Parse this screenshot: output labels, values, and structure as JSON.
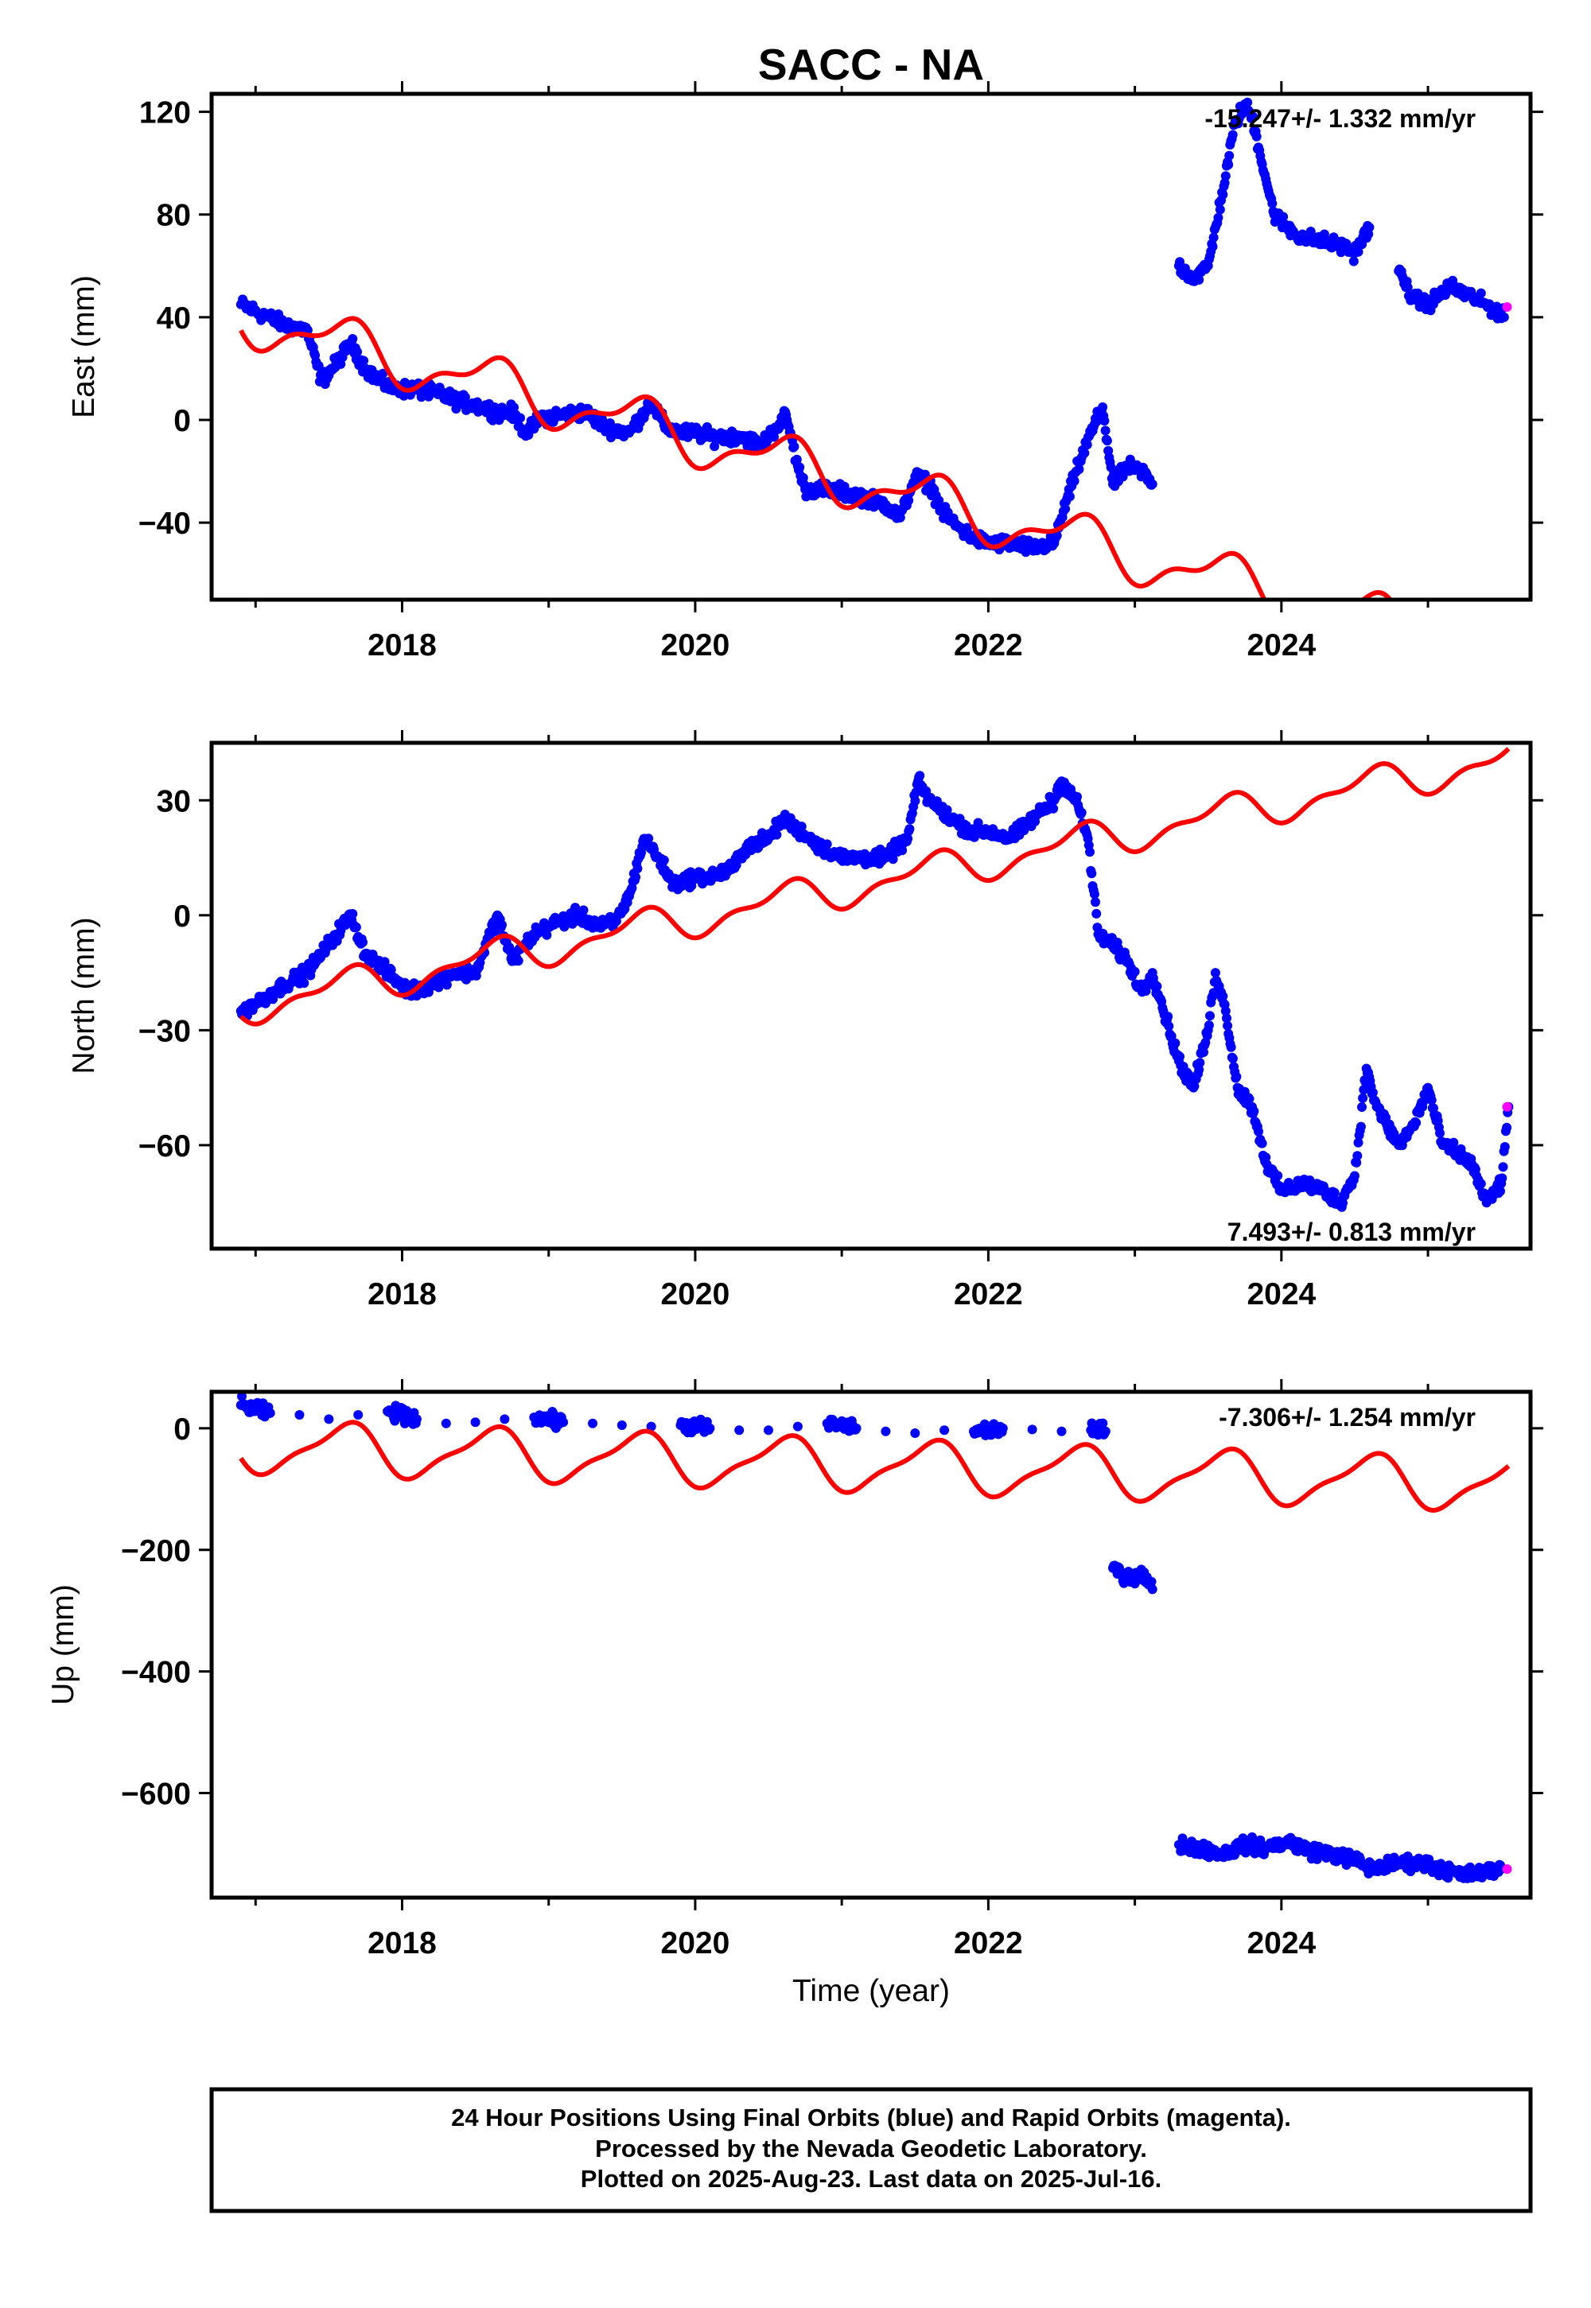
{
  "title": "SACC - NA",
  "footer": {
    "lines": [
      "24 Hour Positions Using Final Orbits (blue) and Rapid Orbits (magenta).",
      "Processed by the Nevada Geodetic Laboratory.",
      "Plotted on 2025-Aug-23. Last data on 2025-Jul-16."
    ]
  },
  "colors": {
    "final": "#0000ff",
    "rapid": "#ff00ff",
    "model": "#ff0000",
    "frame": "#000000"
  },
  "chart_data": [
    {
      "type": "scatter",
      "id": "east",
      "ylabel": "East (mm)",
      "xlabel": "",
      "xlim": [
        2016.7,
        2025.7
      ],
      "ylim": [
        -70,
        127
      ],
      "yticks": [
        -40,
        0,
        40,
        80,
        120
      ],
      "xticks": [
        2018,
        2020,
        2022,
        2024
      ],
      "rate_text": "-15.247+/- 1.332 mm/yr",
      "rate_position": "top-right",
      "series": [
        {
          "name": "Final Orbits",
          "color": "#0000ff",
          "x": [
            2016.9,
            2017.05,
            2017.2,
            2017.35,
            2017.45,
            2017.55,
            2017.65,
            2017.75,
            2017.85,
            2017.95,
            2018.1,
            2018.25,
            2018.4,
            2018.55,
            2018.65,
            2018.75,
            2018.85,
            2018.95,
            2019.1,
            2019.25,
            2019.4,
            2019.55,
            2019.6,
            2019.7,
            2019.8,
            2019.9,
            2020.0,
            2020.15,
            2020.3,
            2020.45,
            2020.55,
            2020.62,
            2020.7,
            2020.75,
            2020.85,
            2021.0,
            2021.15,
            2021.3,
            2021.4,
            2021.5,
            2021.6,
            2021.7,
            2021.8,
            2021.9,
            2022.0,
            2022.15,
            2022.3,
            2022.45,
            2022.5,
            2022.6,
            2022.7,
            2022.78,
            2022.85,
            2022.95,
            2023.05,
            2023.12,
            2023.3,
            2023.4,
            2023.5,
            2023.55,
            2023.62,
            2023.68,
            2023.75,
            2023.8,
            2023.85,
            2023.95,
            2024.1,
            2024.25,
            2024.4,
            2024.5,
            2024.6,
            2024.8,
            2024.9,
            2025.0,
            2025.15,
            2025.3,
            2025.45,
            2025.52
          ],
          "y": [
            45,
            41,
            37,
            35,
            15,
            22,
            30,
            20,
            15,
            12,
            12,
            10,
            7,
            5,
            3,
            3,
            -5,
            1,
            2,
            3,
            -3,
            -5,
            -1,
            7,
            -3,
            -5,
            -5,
            -7,
            -6,
            -10,
            -3,
            2,
            -18,
            -27,
            -27,
            -28,
            -30,
            -33,
            -38,
            -22,
            -25,
            -37,
            -42,
            -46,
            -48,
            -48,
            -50,
            -48,
            -38,
            -20,
            -5,
            5,
            -25,
            -18,
            -20,
            -25,
            60,
            55,
            60,
            75,
            95,
            115,
            123,
            118,
            105,
            80,
            72,
            70,
            68,
            65,
            75,
            58,
            47,
            45,
            52,
            48,
            43,
            40
          ]
        },
        {
          "name": "Rapid Orbits",
          "color": "#ff00ff",
          "x": [
            2025.54
          ],
          "y": [
            44
          ]
        }
      ]
    },
    {
      "type": "scatter",
      "id": "north",
      "ylabel": "North (mm)",
      "xlabel": "",
      "xlim": [
        2016.7,
        2025.7
      ],
      "ylim": [
        -87,
        45
      ],
      "yticks": [
        -60,
        -30,
        0,
        30
      ],
      "xticks": [
        2018,
        2020,
        2022,
        2024
      ],
      "rate_text": "7.493+/- 0.813 mm/yr",
      "rate_position": "bottom-right",
      "series": [
        {
          "name": "Final Orbits",
          "color": "#0000ff",
          "x": [
            2016.9,
            2017.05,
            2017.2,
            2017.35,
            2017.45,
            2017.55,
            2017.65,
            2017.75,
            2017.9,
            2018.05,
            2018.2,
            2018.35,
            2018.5,
            2018.55,
            2018.65,
            2018.75,
            2018.9,
            2019.05,
            2019.2,
            2019.35,
            2019.45,
            2019.55,
            2019.65,
            2019.75,
            2019.85,
            2020.0,
            2020.1,
            2020.25,
            2020.35,
            2020.5,
            2020.6,
            2020.72,
            2020.85,
            2021.0,
            2021.15,
            2021.3,
            2021.45,
            2021.52,
            2021.6,
            2021.75,
            2021.88,
            2022.0,
            2022.15,
            2022.3,
            2022.45,
            2022.5,
            2022.6,
            2022.68,
            2022.75,
            2022.85,
            2022.95,
            2023.05,
            2023.12,
            2023.3,
            2023.4,
            2023.5,
            2023.55,
            2023.62,
            2023.7,
            2023.8,
            2023.9,
            2024.0,
            2024.15,
            2024.3,
            2024.4,
            2024.5,
            2024.58,
            2024.65,
            2024.8,
            2024.9,
            2025.0,
            2025.1,
            2025.2,
            2025.3,
            2025.4,
            2025.5,
            2025.55
          ],
          "y": [
            -25,
            -22,
            -18,
            -15,
            -10,
            -5,
            0,
            -10,
            -15,
            -20,
            -18,
            -15,
            -15,
            -10,
            0,
            -12,
            -5,
            -2,
            0,
            -3,
            -2,
            5,
            20,
            15,
            8,
            10,
            10,
            12,
            18,
            20,
            25,
            22,
            18,
            15,
            15,
            15,
            20,
            35,
            30,
            25,
            22,
            22,
            20,
            25,
            30,
            35,
            30,
            20,
            -5,
            -8,
            -12,
            -20,
            -15,
            -38,
            -45,
            -30,
            -15,
            -25,
            -45,
            -50,
            -65,
            -72,
            -70,
            -72,
            -75,
            -68,
            -40,
            -50,
            -60,
            -55,
            -45,
            -60,
            -62,
            -65,
            -75,
            -70,
            -50
          ]
        },
        {
          "name": "Rapid Orbits",
          "color": "#ff00ff",
          "x": [
            2025.54
          ],
          "y": [
            -50
          ]
        }
      ]
    },
    {
      "type": "scatter",
      "id": "up",
      "ylabel": "Up (mm)",
      "xlabel": "Time (year)",
      "xlim": [
        2016.7,
        2025.7
      ],
      "ylim": [
        -772,
        60
      ],
      "yticks": [
        -600,
        -400,
        -200,
        0
      ],
      "xticks": [
        2018,
        2020,
        2022,
        2024
      ],
      "rate_text": "-7.306+/- 1.254 mm/yr",
      "rate_position": "top-right",
      "series": [
        {
          "name": "Final Orbits",
          "color": "#0000ff",
          "x": [
            2016.9,
            2017.1,
            2017.3,
            2017.5,
            2017.7,
            2017.9,
            2018.1,
            2018.3,
            2018.5,
            2018.7,
            2018.9,
            2019.1,
            2019.3,
            2019.5,
            2019.7,
            2019.9,
            2020.1,
            2020.3,
            2020.5,
            2020.7,
            2020.9,
            2021.1,
            2021.3,
            2021.5,
            2021.7,
            2021.9,
            2022.1,
            2022.3,
            2022.5,
            2022.7,
            2022.8,
            2022.85,
            2022.95,
            2023.05,
            2023.12,
            2023.3,
            2023.45,
            2023.6,
            2023.75,
            2023.9,
            2024.05,
            2024.2,
            2024.35,
            2024.5,
            2024.62,
            2024.8,
            2024.95,
            2025.1,
            2025.25,
            2025.4,
            2025.5
          ],
          "y": [
            38,
            25,
            22,
            15,
            22,
            28,
            15,
            8,
            10,
            15,
            18,
            10,
            8,
            5,
            3,
            5,
            0,
            -3,
            -3,
            3,
            8,
            0,
            -5,
            -8,
            -3,
            -5,
            0,
            -2,
            -5,
            -3,
            -5,
            -230,
            -245,
            -240,
            -265,
            -685,
            -690,
            -700,
            -685,
            -690,
            -680,
            -695,
            -700,
            -710,
            -725,
            -715,
            -715,
            -725,
            -735,
            -730,
            -725
          ]
        },
        {
          "name": "Rapid Orbits",
          "color": "#ff00ff",
          "x": [
            2025.54
          ],
          "y": [
            -725
          ]
        }
      ]
    }
  ]
}
